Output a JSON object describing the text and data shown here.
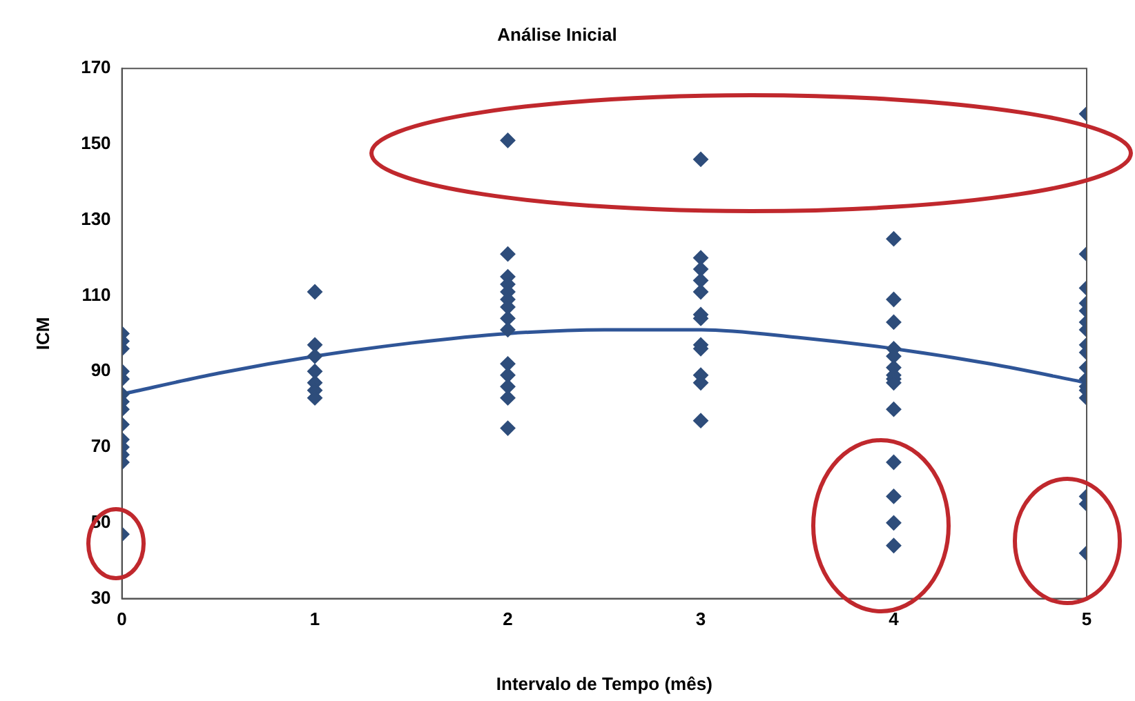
{
  "chart_data": {
    "type": "scatter",
    "title": "Análise Inicial",
    "xlabel": "Intervalo de Tempo (mês)",
    "ylabel": "ICM",
    "xlim": [
      0,
      5
    ],
    "xticks": [
      0,
      1,
      2,
      3,
      4,
      5
    ],
    "ylim": [
      30,
      170
    ],
    "yticks": [
      30,
      50,
      70,
      90,
      110,
      130,
      150,
      170
    ],
    "grid": false,
    "legend": false,
    "marker": "diamond",
    "series": [
      {
        "type": "scatter",
        "color": "#2e4d7b",
        "x": [
          0,
          0,
          0,
          0,
          0,
          0,
          0,
          0,
          0,
          0,
          0,
          0,
          0,
          0,
          1,
          1,
          1,
          1,
          1,
          1,
          1,
          2,
          2,
          2,
          2,
          2,
          2,
          2,
          2,
          2,
          2,
          2,
          2,
          2,
          2,
          3,
          3,
          3,
          3,
          3,
          3,
          3,
          3,
          3,
          3,
          3,
          3,
          4,
          4,
          4,
          4,
          4,
          4,
          4,
          4,
          4,
          4,
          4,
          4,
          4,
          4,
          5,
          5,
          5,
          5,
          5,
          5,
          5,
          5,
          5,
          5,
          5,
          5,
          5,
          5,
          5,
          5,
          5
        ],
        "values": [
          100,
          98,
          96,
          90,
          88,
          84,
          82,
          80,
          76,
          72,
          70,
          68,
          66,
          47,
          111,
          97,
          94,
          90,
          87,
          85,
          83,
          151,
          121,
          115,
          113,
          111,
          109,
          107,
          104,
          101,
          92,
          89,
          86,
          83,
          75,
          146,
          120,
          117,
          114,
          111,
          105,
          104,
          97,
          96,
          89,
          87,
          77,
          125,
          109,
          103,
          96,
          94,
          91,
          89,
          88,
          87,
          80,
          66,
          57,
          50,
          44,
          158,
          121,
          112,
          108,
          106,
          103,
          101,
          97,
          95,
          91,
          88,
          86,
          85,
          83,
          57,
          55,
          42
        ]
      },
      {
        "type": "line",
        "color": "#2f5597",
        "marker": "none",
        "x": [
          0,
          0.5,
          1,
          1.5,
          2,
          2.5,
          3,
          3.5,
          4,
          4.5,
          5
        ],
        "values": [
          84,
          89.5,
          94,
          97.5,
          100,
          101,
          101,
          99,
          96,
          92,
          87
        ]
      }
    ]
  }
}
